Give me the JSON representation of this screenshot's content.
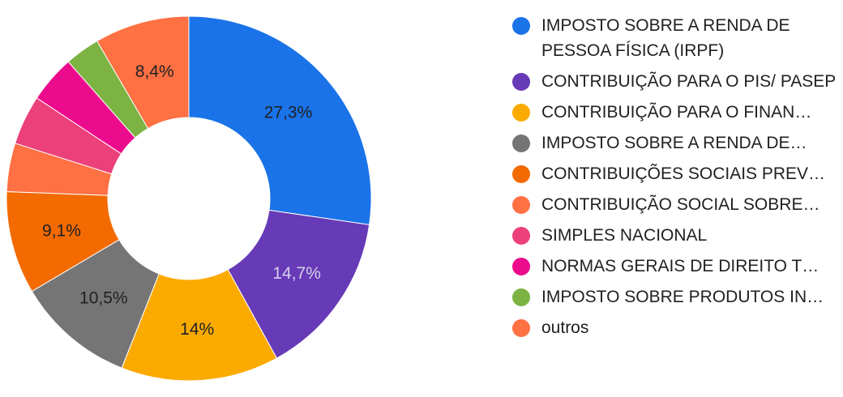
{
  "chart_data": {
    "type": "pie",
    "donut": true,
    "legend_position": "right",
    "series": [
      {
        "name": "IMPOSTO SOBRE A RENDA DE PESSOA FÍSICA (IRPF)",
        "value": 27.3,
        "label": "27,3%",
        "color": "#1a73e8",
        "label_color": "#202124"
      },
      {
        "name": "CONTRIBUIÇÃO PARA O PIS/ PASEP",
        "value": 14.7,
        "label": "14,7%",
        "color": "#673ab7",
        "label_color": "#d5d0ea"
      },
      {
        "name": "CONTRIBUIÇÃO PARA O FINAN…",
        "value": 14,
        "label": "14%",
        "color": "#fbaa00",
        "label_color": "#202124"
      },
      {
        "name": "IMPOSTO SOBRE A RENDA DE…",
        "value": 10.5,
        "label": "10,5%",
        "color": "#757575",
        "label_color": "#202124"
      },
      {
        "name": "CONTRIBUIÇÕES SOCIAIS PREV…",
        "value": 9.1,
        "label": "9,1%",
        "color": "#f26a00",
        "label_color": "#202124"
      },
      {
        "name": "CONTRIBUIÇÃO SOCIAL SOBRE…",
        "value": 4.3,
        "label": "",
        "color": "#ff7043",
        "label_color": "#202124"
      },
      {
        "name": "SIMPLES NACIONAL",
        "value": 4.4,
        "label": "",
        "color": "#ec407a",
        "label_color": "#202124"
      },
      {
        "name": "NORMAS GERAIS DE DIREITO T…",
        "value": 4.2,
        "label": "",
        "color": "#ec0b8d",
        "label_color": "#202124"
      },
      {
        "name": "IMPOSTO SOBRE PRODUTOS IN…",
        "value": 3.1,
        "label": "",
        "color": "#7cb342",
        "label_color": "#202124"
      },
      {
        "name": "outros",
        "value": 8.4,
        "label": "8,4%",
        "color": "#ff7043",
        "label_color": "#202124"
      }
    ]
  }
}
